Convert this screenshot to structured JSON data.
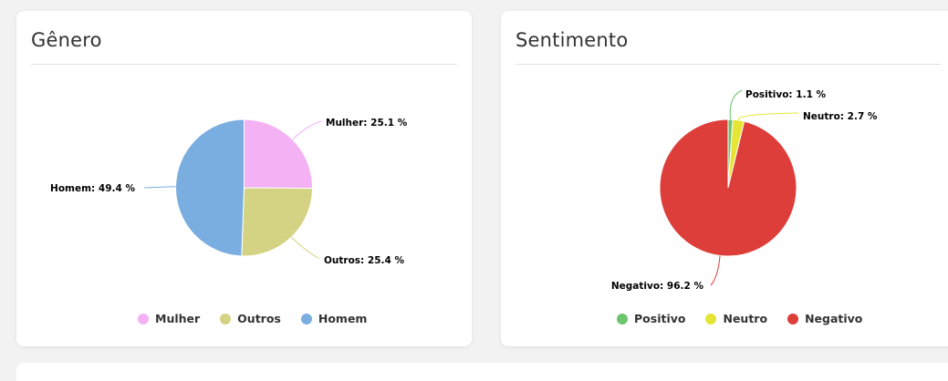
{
  "cards": {
    "genero": {
      "title": "Gênero"
    },
    "sentimento": {
      "title": "Sentimento"
    }
  },
  "chart_data": [
    {
      "type": "pie",
      "title": "Gênero",
      "categories": [
        "Mulher",
        "Outros",
        "Homem"
      ],
      "values": [
        25.1,
        25.4,
        49.4
      ],
      "labels": [
        "Mulher: 25.1 %",
        "Outros: 25.4 %",
        "Homem: 49.4 %"
      ],
      "colors": [
        "#f4b1f4",
        "#d4d384",
        "#7aaee0"
      ],
      "legend": "bottom"
    },
    {
      "type": "pie",
      "title": "Sentimento",
      "categories": [
        "Positivo",
        "Neutro",
        "Negativo"
      ],
      "values": [
        1.1,
        2.7,
        96.2
      ],
      "labels": [
        "Positivo: 1.1 %",
        "Neutro: 2.7 %",
        "Negativo: 96.2 %"
      ],
      "colors": [
        "#6cc46c",
        "#e5e535",
        "#dd3e3a"
      ],
      "legend": "bottom"
    }
  ]
}
